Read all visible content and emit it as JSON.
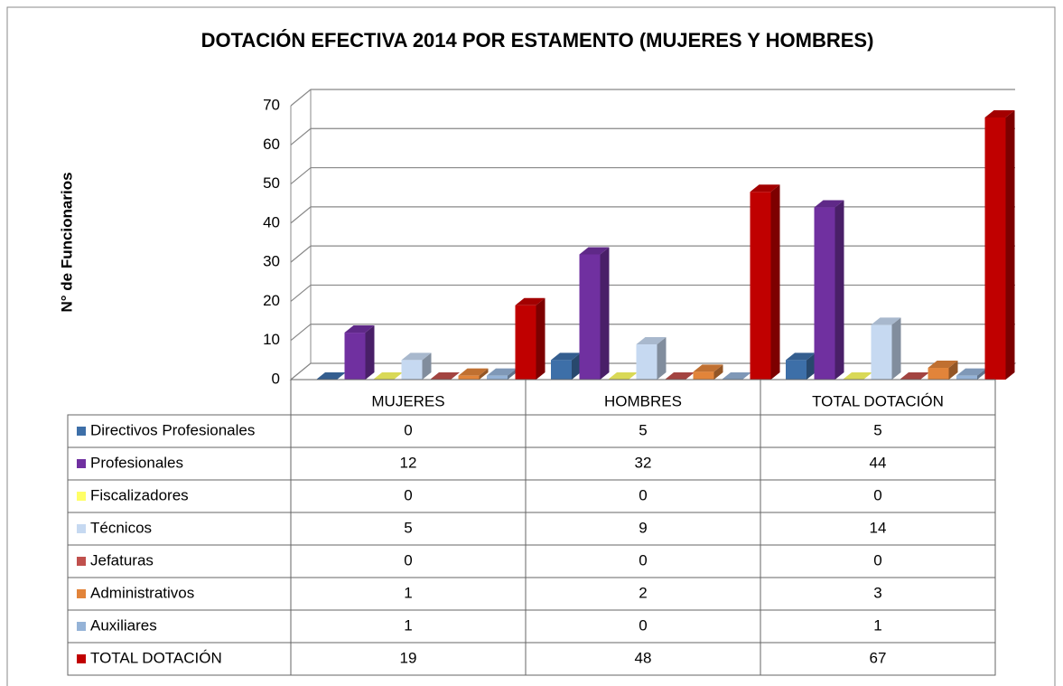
{
  "chart_data": {
    "type": "bar3d",
    "title": "DOTACIÓN EFECTIVA 2014 POR ESTAMENTO (MUJERES Y HOMBRES)",
    "y_label": "N° de Funcionarios",
    "categories": [
      "MUJERES",
      "HOMBRES",
      "TOTAL DOTACIÓN"
    ],
    "series": [
      {
        "name": "Directivos Profesionales",
        "color": "#3d6fa8",
        "values": [
          0,
          5,
          5
        ]
      },
      {
        "name": "Profesionales",
        "color": "#7030a0",
        "values": [
          12,
          32,
          44
        ]
      },
      {
        "name": "Fiscalizadores",
        "color": "#ffff66",
        "values": [
          0,
          0,
          0
        ]
      },
      {
        "name": "Técnicos",
        "color": "#c6d9f1",
        "values": [
          5,
          9,
          14
        ]
      },
      {
        "name": "Jefaturas",
        "color": "#c0504d",
        "values": [
          0,
          0,
          0
        ]
      },
      {
        "name": "Administrativos",
        "color": "#e2843a",
        "values": [
          1,
          2,
          3
        ]
      },
      {
        "name": "Auxiliares",
        "color": "#95b3d7",
        "values": [
          1,
          0,
          1
        ]
      },
      {
        "name": "TOTAL DOTACIÓN",
        "color": "#c00000",
        "values": [
          19,
          48,
          67
        ]
      }
    ],
    "ylim": [
      0,
      70
    ],
    "yticks": [
      0,
      10,
      20,
      30,
      40,
      50,
      60,
      70
    ],
    "grid": true
  }
}
